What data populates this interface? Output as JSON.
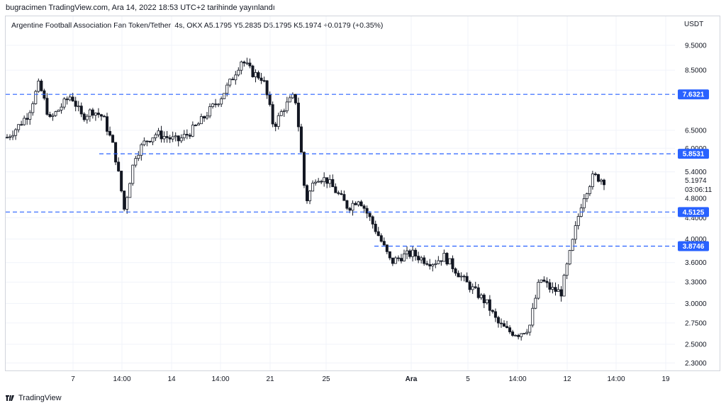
{
  "header": {
    "publisher_line": "bugracimen TradingView.com, Ara 14, 2022 18:53 UTC+2 tarihinde yayınlandı"
  },
  "series_info": "Argentine Football Association Fan Token/Tether, 4s, OKX  A5.1795  Y5.2835  D5.1795  K5.1974  +0.0179 (+0.35%)",
  "currency": "USDT",
  "footer": {
    "brand": "TradingView",
    "logo_icon": "tradingview-logo-icon"
  },
  "colors": {
    "candle": "#131722",
    "level_line": "#2962ff",
    "level_label_bg": "#2962ff",
    "grid": "#f0f3fa"
  },
  "chart_data": {
    "type": "candlestick",
    "y_scale": "log",
    "y_ticks": [
      "9.5000",
      "8.5000",
      "6.5000",
      "6.0000",
      "5.4000",
      "4.8000",
      "4.4000",
      "4.0000",
      "3.6000",
      "3.3000",
      "3.0000",
      "2.7500",
      "2.5000",
      "2.3000"
    ],
    "x_ticks": [
      "7",
      "14:00",
      "14",
      "14:00",
      "21",
      "25",
      "Ara",
      "5",
      "14:00",
      "12",
      "14:00",
      "19"
    ],
    "last_price": "5.1974",
    "countdown": "03:06:11",
    "levels": [
      {
        "value": 7.6321,
        "label": "7.6321"
      },
      {
        "value": 5.8531,
        "label": "5.8531"
      },
      {
        "value": 4.5125,
        "label": "4.5125"
      },
      {
        "value": 3.8746,
        "label": "3.8746"
      }
    ],
    "close_path": [
      6.3,
      6.6,
      7.0,
      8.0,
      6.8,
      7.2,
      7.6,
      6.9,
      7.1,
      6.9,
      6.0,
      4.55,
      5.8,
      6.2,
      6.4,
      6.3,
      6.2,
      6.4,
      6.7,
      7.1,
      7.5,
      8.1,
      8.9,
      8.4,
      8.2,
      6.6,
      7.2,
      7.6,
      4.7,
      5.3,
      5.2,
      4.9,
      4.6,
      4.8,
      4.4,
      4.0,
      3.6,
      3.7,
      3.75,
      3.65,
      3.6,
      3.7,
      3.5,
      3.3,
      3.15,
      3.0,
      2.75,
      2.65,
      2.62,
      2.7,
      3.35,
      3.2,
      3.15,
      3.9,
      4.8,
      5.3,
      5.2
    ]
  }
}
